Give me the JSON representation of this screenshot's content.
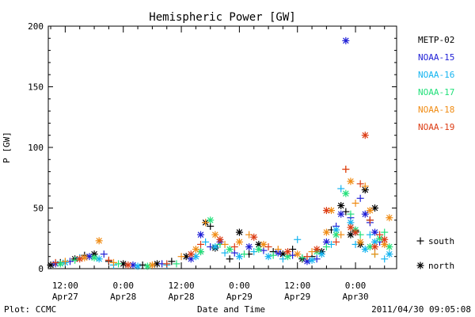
{
  "footer": {
    "plot_credit": "Plot: CCMC",
    "timestamp": "2011/04/30 09:05:08"
  },
  "colors": {
    "METP-02": "#000000",
    "NOAA-15": "#1f1fd6",
    "NOAA-16": "#14b4f0",
    "NOAA-17": "#22e07a",
    "NOAA-18": "#f08c14",
    "NOAA-19": "#dc3c14"
  },
  "chart_data": {
    "type": "scatter",
    "title": "Hemispheric Power [GW]",
    "xlabel": "Date and Time",
    "ylabel": "P [GW]",
    "x_units": "hours since Apr27 00:00",
    "xlim": [
      8.5,
      80.5
    ],
    "ylim": [
      0,
      200
    ],
    "yticks": [
      0,
      50,
      100,
      150,
      200
    ],
    "xticks": [
      {
        "x": 12,
        "label1": "12:00",
        "label2": "Apr27"
      },
      {
        "x": 24,
        "label1": "0:00",
        "label2": "Apr28"
      },
      {
        "x": 36,
        "label1": "12:00",
        "label2": "Apr28"
      },
      {
        "x": 48,
        "label1": "0:00",
        "label2": "Apr29"
      },
      {
        "x": 60,
        "label1": "12:00",
        "label2": "Apr29"
      },
      {
        "x": 72,
        "label1": "0:00",
        "label2": "Apr30"
      }
    ],
    "legend": {
      "placement": "right",
      "series_names": [
        "METP-02",
        "NOAA-15",
        "NOAA-16",
        "NOAA-17",
        "NOAA-18",
        "NOAA-19"
      ],
      "markers": [
        {
          "symbol": "+",
          "label": "south"
        },
        {
          "symbol": "*",
          "label": "north"
        }
      ]
    },
    "series": [
      {
        "name": "METP-02",
        "points": [
          [
            9,
            3,
            "*"
          ],
          [
            11,
            5,
            "+"
          ],
          [
            14,
            8,
            "*"
          ],
          [
            16,
            11,
            "+"
          ],
          [
            18,
            12,
            "*"
          ],
          [
            21,
            6,
            "+"
          ],
          [
            24,
            4,
            "*"
          ],
          [
            28,
            3,
            "+"
          ],
          [
            31,
            4,
            "*"
          ],
          [
            34,
            6,
            "+"
          ],
          [
            37,
            10,
            "*"
          ],
          [
            40,
            14,
            "+"
          ],
          [
            41,
            38,
            "*"
          ],
          [
            42,
            35,
            "+"
          ],
          [
            43,
            17,
            "*"
          ],
          [
            46,
            8,
            "+"
          ],
          [
            48,
            30,
            "*"
          ],
          [
            50,
            12,
            "+"
          ],
          [
            52,
            20,
            "*"
          ],
          [
            55,
            14,
            "+"
          ],
          [
            57,
            12,
            "*"
          ],
          [
            59,
            16,
            "+"
          ],
          [
            61,
            8,
            "*"
          ],
          [
            63,
            10,
            "+"
          ],
          [
            65,
            14,
            "*"
          ],
          [
            67,
            32,
            "+"
          ],
          [
            69,
            52,
            "*"
          ],
          [
            70,
            47,
            "+"
          ],
          [
            71,
            28,
            "*"
          ],
          [
            72,
            31,
            "+"
          ],
          [
            73,
            20,
            "*"
          ],
          [
            74,
            65,
            "*"
          ],
          [
            75,
            40,
            "+"
          ],
          [
            76,
            50,
            "*"
          ]
        ]
      },
      {
        "name": "NOAA-15",
        "points": [
          [
            10,
            4,
            "*"
          ],
          [
            13,
            6,
            "+"
          ],
          [
            17,
            10,
            "*"
          ],
          [
            20,
            12,
            "+"
          ],
          [
            26,
            3,
            "*"
          ],
          [
            32,
            4,
            "+"
          ],
          [
            38,
            8,
            "*"
          ],
          [
            40,
            28,
            "*"
          ],
          [
            42,
            18,
            "+"
          ],
          [
            44,
            22,
            "*"
          ],
          [
            47,
            13,
            "+"
          ],
          [
            50,
            18,
            "*"
          ],
          [
            53,
            15,
            "+"
          ],
          [
            56,
            13,
            "*"
          ],
          [
            59,
            11,
            "+"
          ],
          [
            62,
            6,
            "*"
          ],
          [
            64,
            8,
            "+"
          ],
          [
            66,
            22,
            "*"
          ],
          [
            68,
            35,
            "+"
          ],
          [
            69,
            45,
            "*"
          ],
          [
            70,
            188,
            "*"
          ],
          [
            71,
            42,
            "+"
          ],
          [
            72,
            30,
            "*"
          ],
          [
            73,
            58,
            "+"
          ],
          [
            74,
            45,
            "*"
          ],
          [
            75,
            38,
            "+"
          ],
          [
            76,
            30,
            "*"
          ],
          [
            77,
            22,
            "+"
          ]
        ]
      },
      {
        "name": "NOAA-16",
        "points": [
          [
            12,
            5,
            "*"
          ],
          [
            15,
            9,
            "+"
          ],
          [
            19,
            8,
            "*"
          ],
          [
            22,
            3,
            "+"
          ],
          [
            27,
            2,
            "*"
          ],
          [
            33,
            3,
            "+"
          ],
          [
            39,
            10,
            "*"
          ],
          [
            41,
            22,
            "+"
          ],
          [
            43,
            18,
            "*"
          ],
          [
            45,
            13,
            "+"
          ],
          [
            48,
            10,
            "*"
          ],
          [
            51,
            14,
            "+"
          ],
          [
            54,
            10,
            "*"
          ],
          [
            57,
            8,
            "+"
          ],
          [
            60,
            24,
            "+"
          ],
          [
            63,
            7,
            "*"
          ],
          [
            65,
            12,
            "*"
          ],
          [
            67,
            20,
            "+"
          ],
          [
            68,
            32,
            "*"
          ],
          [
            69,
            66,
            "+"
          ],
          [
            71,
            38,
            "*"
          ],
          [
            72,
            20,
            "+"
          ],
          [
            74,
            16,
            "*"
          ],
          [
            75,
            28,
            "+"
          ],
          [
            76,
            22,
            "*"
          ],
          [
            78,
            8,
            "+"
          ],
          [
            79,
            12,
            "*"
          ]
        ]
      },
      {
        "name": "NOAA-17",
        "points": [
          [
            11,
            4,
            "*"
          ],
          [
            14,
            7,
            "+"
          ],
          [
            18,
            9,
            "*"
          ],
          [
            23,
            4,
            "+"
          ],
          [
            29,
            2,
            "*"
          ],
          [
            35,
            4,
            "+"
          ],
          [
            40,
            14,
            "*"
          ],
          [
            42,
            40,
            "*"
          ],
          [
            44,
            20,
            "+"
          ],
          [
            46,
            16,
            "*"
          ],
          [
            49,
            12,
            "+"
          ],
          [
            52,
            16,
            "*"
          ],
          [
            55,
            11,
            "+"
          ],
          [
            58,
            10,
            "*"
          ],
          [
            61,
            9,
            "+"
          ],
          [
            64,
            14,
            "*"
          ],
          [
            66,
            18,
            "+"
          ],
          [
            68,
            28,
            "*"
          ],
          [
            70,
            62,
            "*"
          ],
          [
            71,
            45,
            "+"
          ],
          [
            72,
            32,
            "*"
          ],
          [
            73,
            28,
            "+"
          ],
          [
            75,
            18,
            "*"
          ],
          [
            76,
            12,
            "+"
          ],
          [
            77,
            25,
            "*"
          ],
          [
            78,
            30,
            "+"
          ],
          [
            79,
            18,
            "*"
          ]
        ]
      },
      {
        "name": "NOAA-18",
        "points": [
          [
            12,
            6,
            "+"
          ],
          [
            16,
            9,
            "*"
          ],
          [
            19,
            23,
            "*"
          ],
          [
            22,
            5,
            "+"
          ],
          [
            30,
            3,
            "*"
          ],
          [
            36,
            10,
            "+"
          ],
          [
            39,
            16,
            "*"
          ],
          [
            41,
            38,
            "+"
          ],
          [
            43,
            28,
            "*"
          ],
          [
            45,
            20,
            "+"
          ],
          [
            48,
            22,
            "*"
          ],
          [
            50,
            28,
            "+"
          ],
          [
            53,
            20,
            "*"
          ],
          [
            56,
            16,
            "+"
          ],
          [
            60,
            12,
            "*"
          ],
          [
            63,
            14,
            "+"
          ],
          [
            66,
            30,
            "*"
          ],
          [
            67,
            48,
            "*"
          ],
          [
            69,
            28,
            "+"
          ],
          [
            70,
            82,
            "+"
          ],
          [
            71,
            72,
            "*"
          ],
          [
            72,
            54,
            "+"
          ],
          [
            73,
            22,
            "*"
          ],
          [
            74,
            68,
            "+"
          ],
          [
            75,
            48,
            "*"
          ],
          [
            76,
            12,
            "+"
          ],
          [
            78,
            20,
            "*"
          ],
          [
            79,
            42,
            "*"
          ]
        ]
      },
      {
        "name": "NOAA-19",
        "points": [
          [
            10,
            5,
            "+"
          ],
          [
            15,
            8,
            "*"
          ],
          [
            21,
            7,
            "+"
          ],
          [
            25,
            3,
            "*"
          ],
          [
            33,
            4,
            "+"
          ],
          [
            38,
            12,
            "*"
          ],
          [
            40,
            20,
            "+"
          ],
          [
            44,
            24,
            "*"
          ],
          [
            47,
            18,
            "+"
          ],
          [
            51,
            26,
            "*"
          ],
          [
            54,
            18,
            "+"
          ],
          [
            58,
            14,
            "*"
          ],
          [
            62,
            10,
            "+"
          ],
          [
            64,
            16,
            "*"
          ],
          [
            66,
            48,
            "*"
          ],
          [
            68,
            22,
            "+"
          ],
          [
            70,
            82,
            "+"
          ],
          [
            71,
            34,
            "*"
          ],
          [
            72,
            30,
            "*"
          ],
          [
            73,
            70,
            "+"
          ],
          [
            74,
            110,
            "*"
          ],
          [
            75,
            40,
            "+"
          ],
          [
            76,
            18,
            "*"
          ],
          [
            77,
            28,
            "+"
          ],
          [
            78,
            24,
            "*"
          ]
        ]
      }
    ]
  }
}
